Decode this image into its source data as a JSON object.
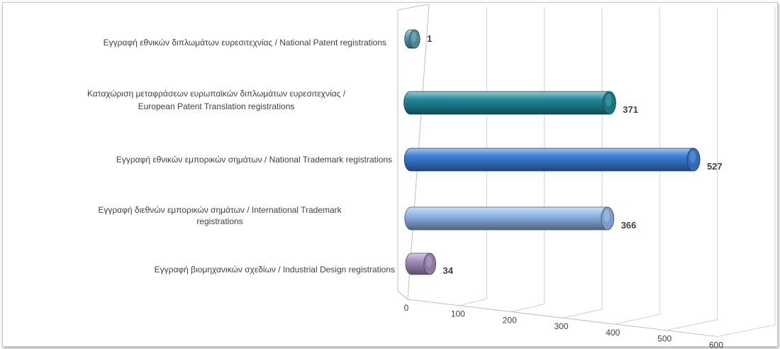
{
  "chart_data": {
    "type": "bar",
    "orientation": "horizontal",
    "three_d": true,
    "categories": [
      [
        "Εγγραφή  εθνικών διπλωμάτων ευρεσιτεχνίας / National Patent registrations"
      ],
      [
        "Καταχώριση μεταφράσεων ευρωπαϊκών διπλωμάτων ευρεσιτεχνίας /",
        "European Patent Translation registrations"
      ],
      [
        "Εγγραφή  εθνικών εμπορικών σημάτων / National Trademark registrations"
      ],
      [
        "Εγγραφή  διεθνών εμπορικών σημάτων / International Trademark",
        "registrations"
      ],
      [
        "Εγγραφή  βιομηχανικών σχεδίων / Industrial Design registrations"
      ]
    ],
    "values": [
      1,
      371,
      527,
      366,
      34
    ],
    "data_labels": [
      "1",
      "371",
      "527",
      "366",
      "34"
    ],
    "colors": [
      "#5aa0b4",
      "#1f8a9a",
      "#3b7fd8",
      "#8fb8ea",
      "#a88fc0"
    ],
    "xlim": [
      0,
      600
    ],
    "xticks": [
      "0",
      "100",
      "200",
      "300",
      "400",
      "500",
      "600"
    ],
    "grid": true,
    "legend": "none",
    "title": "",
    "xlabel": "",
    "ylabel": ""
  }
}
